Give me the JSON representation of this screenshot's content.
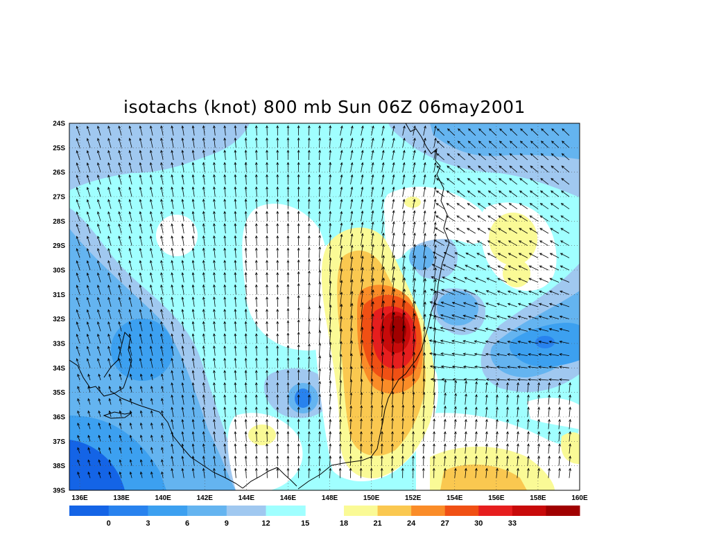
{
  "title": "isotachs (knot) 800 mb Sun 06Z 06may2001",
  "map": {
    "lon_labels": [
      "136E",
      "138E",
      "140E",
      "142E",
      "144E",
      "146E",
      "148E",
      "150E",
      "152E",
      "154E",
      "156E",
      "158E",
      "160E"
    ],
    "lat_labels": [
      "24S",
      "25S",
      "26S",
      "27S",
      "28S",
      "29S",
      "30S",
      "31S",
      "32S",
      "33S",
      "34S",
      "35S",
      "36S",
      "37S",
      "38S",
      "39S"
    ],
    "lon_range": [
      135.5,
      160
    ],
    "lat_range": [
      -39,
      -24
    ],
    "grid": "dotted"
  },
  "colorbar": {
    "labels": [
      "0",
      "3",
      "6",
      "9",
      "12",
      "15",
      "18",
      "21",
      "24",
      "27",
      "30",
      "33"
    ],
    "colors": [
      "#1464e6",
      "#2882ee",
      "#3ca0f0",
      "#64b4f0",
      "#a0c8f0",
      "#a0ffff",
      "#ffffff",
      "#fafa96",
      "#fac850",
      "#fa8c28",
      "#f05014",
      "#e61e1e",
      "#c80a0a",
      "#a00000"
    ]
  }
}
